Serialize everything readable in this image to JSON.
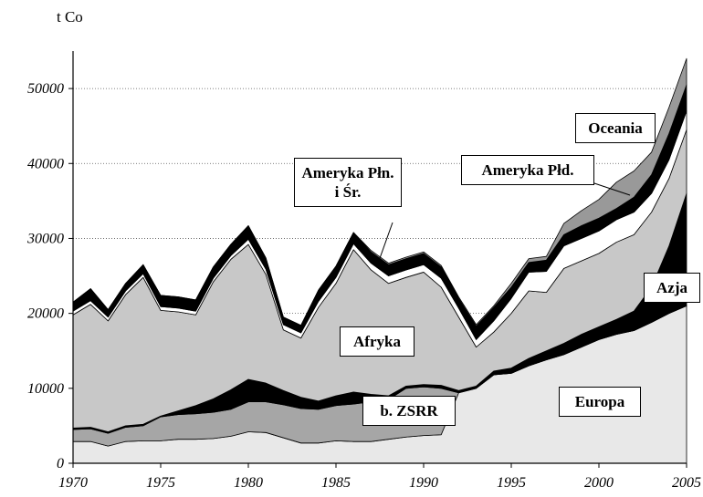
{
  "chart_data": {
    "type": "stacked-area",
    "y_label": "t Co",
    "x": [
      1970,
      1971,
      1972,
      1973,
      1974,
      1975,
      1976,
      1977,
      1978,
      1979,
      1980,
      1981,
      1982,
      1983,
      1984,
      1985,
      1986,
      1987,
      1988,
      1989,
      1990,
      1991,
      1992,
      1993,
      1994,
      1995,
      1996,
      1997,
      1998,
      1999,
      2000,
      2001,
      2002,
      2003,
      2004,
      2005
    ],
    "xlim": [
      1970,
      2005
    ],
    "xticks": [
      1970,
      1975,
      1980,
      1985,
      1990,
      1995,
      2000,
      2005
    ],
    "ylim": [
      0,
      55000
    ],
    "yticks": [
      0,
      10000,
      20000,
      30000,
      40000,
      50000
    ],
    "grid": true,
    "series": [
      {
        "name": "Europa",
        "color": "#e8e8e8",
        "values": [
          2900,
          2900,
          2300,
          2900,
          3000,
          3000,
          3200,
          3200,
          3300,
          3600,
          4200,
          4100,
          3400,
          2700,
          2700,
          3000,
          2900,
          2900,
          3200,
          3500,
          3700,
          3800,
          9400,
          10000,
          11800,
          12000,
          13000,
          13800,
          14500,
          15500,
          16500,
          17200,
          17700,
          18800,
          20000,
          21000
        ]
      },
      {
        "name": "b. ZSRR",
        "color": "#a6a6a6",
        "values": [
          1600,
          1700,
          1700,
          1900,
          2000,
          3200,
          3300,
          3400,
          3500,
          3600,
          4000,
          4100,
          4400,
          4600,
          4500,
          4700,
          5000,
          5300,
          5300,
          6500,
          6500,
          6200,
          0,
          0,
          0,
          0,
          0,
          0,
          0,
          0,
          0,
          0,
          0,
          0,
          0,
          0
        ]
      },
      {
        "name": "Azja",
        "color": "#000000",
        "values": [
          200,
          200,
          200,
          200,
          200,
          100,
          500,
          1100,
          1800,
          2600,
          3000,
          2500,
          1900,
          1500,
          1100,
          1300,
          1600,
          1000,
          500,
          300,
          300,
          400,
          300,
          300,
          500,
          700,
          1000,
          1200,
          1500,
          1700,
          1700,
          2000,
          2600,
          4700,
          9000,
          15000
        ]
      },
      {
        "name": "Afryka",
        "color": "#c8c8c8",
        "values": [
          15100,
          16400,
          14800,
          17500,
          19600,
          14100,
          13200,
          12100,
          15600,
          17400,
          18000,
          14500,
          8100,
          7900,
          12500,
          15000,
          19000,
          16600,
          15000,
          14500,
          15000,
          13100,
          9800,
          5200,
          5200,
          7300,
          9000,
          7800,
          10000,
          9800,
          9800,
          10300,
          10200,
          10000,
          9000,
          8500
        ]
      },
      {
        "name": "Ameryka Płd.",
        "color": "#ffffff",
        "values": [
          500,
          500,
          500,
          500,
          500,
          500,
          500,
          500,
          500,
          500,
          700,
          700,
          700,
          700,
          800,
          800,
          800,
          900,
          1000,
          1000,
          1000,
          1200,
          1200,
          1000,
          1500,
          2000,
          2500,
          2800,
          3000,
          3000,
          3000,
          3000,
          3000,
          2500,
          2500,
          2500
        ]
      },
      {
        "name": "Ameryka Płn. i Śr.",
        "color": "#000000",
        "values": [
          1200,
          1600,
          1000,
          1000,
          1200,
          1500,
          1500,
          1500,
          1500,
          1500,
          1800,
          1500,
          1000,
          1000,
          1500,
          1500,
          1500,
          1500,
          1500,
          1500,
          1500,
          1500,
          1300,
          1800,
          1800,
          1500,
          1300,
          1500,
          1500,
          1700,
          1700,
          1500,
          2000,
          2500,
          3500,
          3500
        ]
      },
      {
        "name": "Oceania",
        "color": "#999999",
        "values": [
          0,
          0,
          0,
          0,
          0,
          0,
          0,
          0,
          0,
          0,
          0,
          0,
          0,
          0,
          0,
          0,
          0,
          200,
          200,
          200,
          200,
          200,
          200,
          200,
          200,
          500,
          500,
          500,
          1500,
          2000,
          2500,
          3500,
          3500,
          3000,
          3500,
          3500
        ]
      }
    ]
  }
}
